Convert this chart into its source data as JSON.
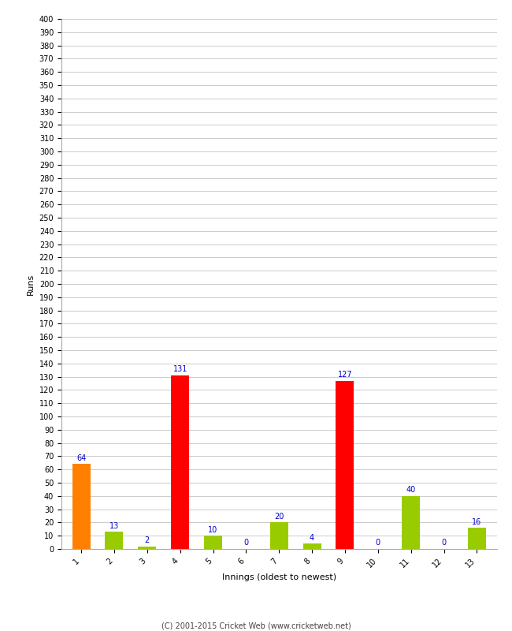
{
  "xlabel": "Innings (oldest to newest)",
  "ylabel": "Runs",
  "categories": [
    1,
    2,
    3,
    4,
    5,
    6,
    7,
    8,
    9,
    10,
    11,
    12,
    13
  ],
  "values": [
    64,
    13,
    2,
    131,
    10,
    0,
    20,
    4,
    127,
    0,
    40,
    0,
    16
  ],
  "colors": [
    "#FF8000",
    "#99CC00",
    "#99CC00",
    "#FF0000",
    "#99CC00",
    "#99CC00",
    "#99CC00",
    "#99CC00",
    "#FF0000",
    "#99CC00",
    "#99CC00",
    "#99CC00",
    "#99CC00"
  ],
  "ylim": [
    0,
    400
  ],
  "yticks": [
    0,
    10,
    20,
    30,
    40,
    50,
    60,
    70,
    80,
    90,
    100,
    110,
    120,
    130,
    140,
    150,
    160,
    170,
    180,
    190,
    200,
    210,
    220,
    230,
    240,
    250,
    260,
    270,
    280,
    290,
    300,
    310,
    320,
    330,
    340,
    350,
    360,
    370,
    380,
    390,
    400
  ],
  "label_color": "#0000CC",
  "label_fontsize": 7,
  "background_color": "#FFFFFF",
  "grid_color": "#CCCCCC",
  "footer": "(C) 2001-2015 Cricket Web (www.cricketweb.net)",
  "bar_width": 0.55,
  "tick_fontsize": 7,
  "xlabel_fontsize": 8,
  "ylabel_fontsize": 8
}
